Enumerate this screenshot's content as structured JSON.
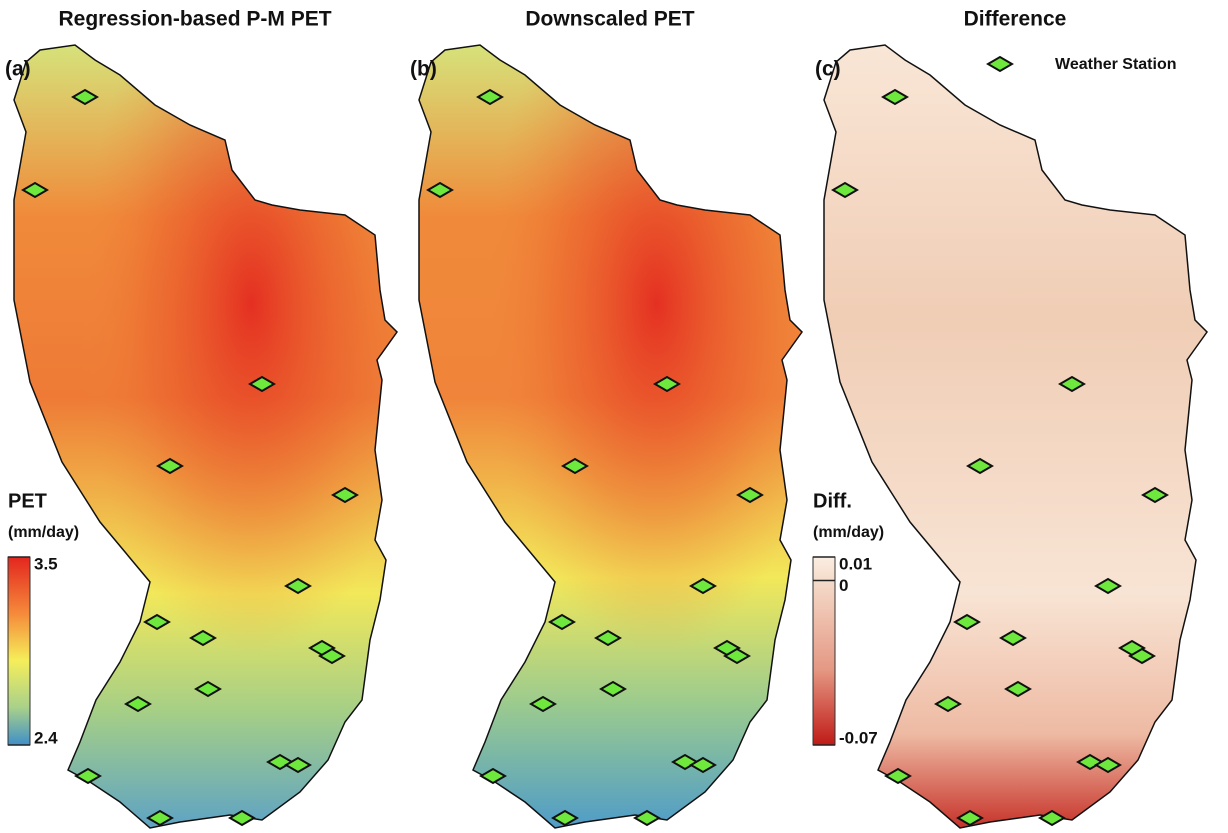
{
  "panels": [
    {
      "label": "(a)",
      "title": "Regression-based P-M PET"
    },
    {
      "label": "(b)",
      "title": "Downscaled PET"
    },
    {
      "label": "(c)",
      "title": "Difference"
    }
  ],
  "legends": [
    {
      "title": "PET",
      "unit": "(mm/day)",
      "ticks": [
        3.5,
        2.4
      ]
    },
    {
      "title": "Diff.",
      "unit": "(mm/day)",
      "ticks": [
        0.01,
        0,
        -0.07
      ]
    }
  ],
  "station_legend": "Weather Station"
}
